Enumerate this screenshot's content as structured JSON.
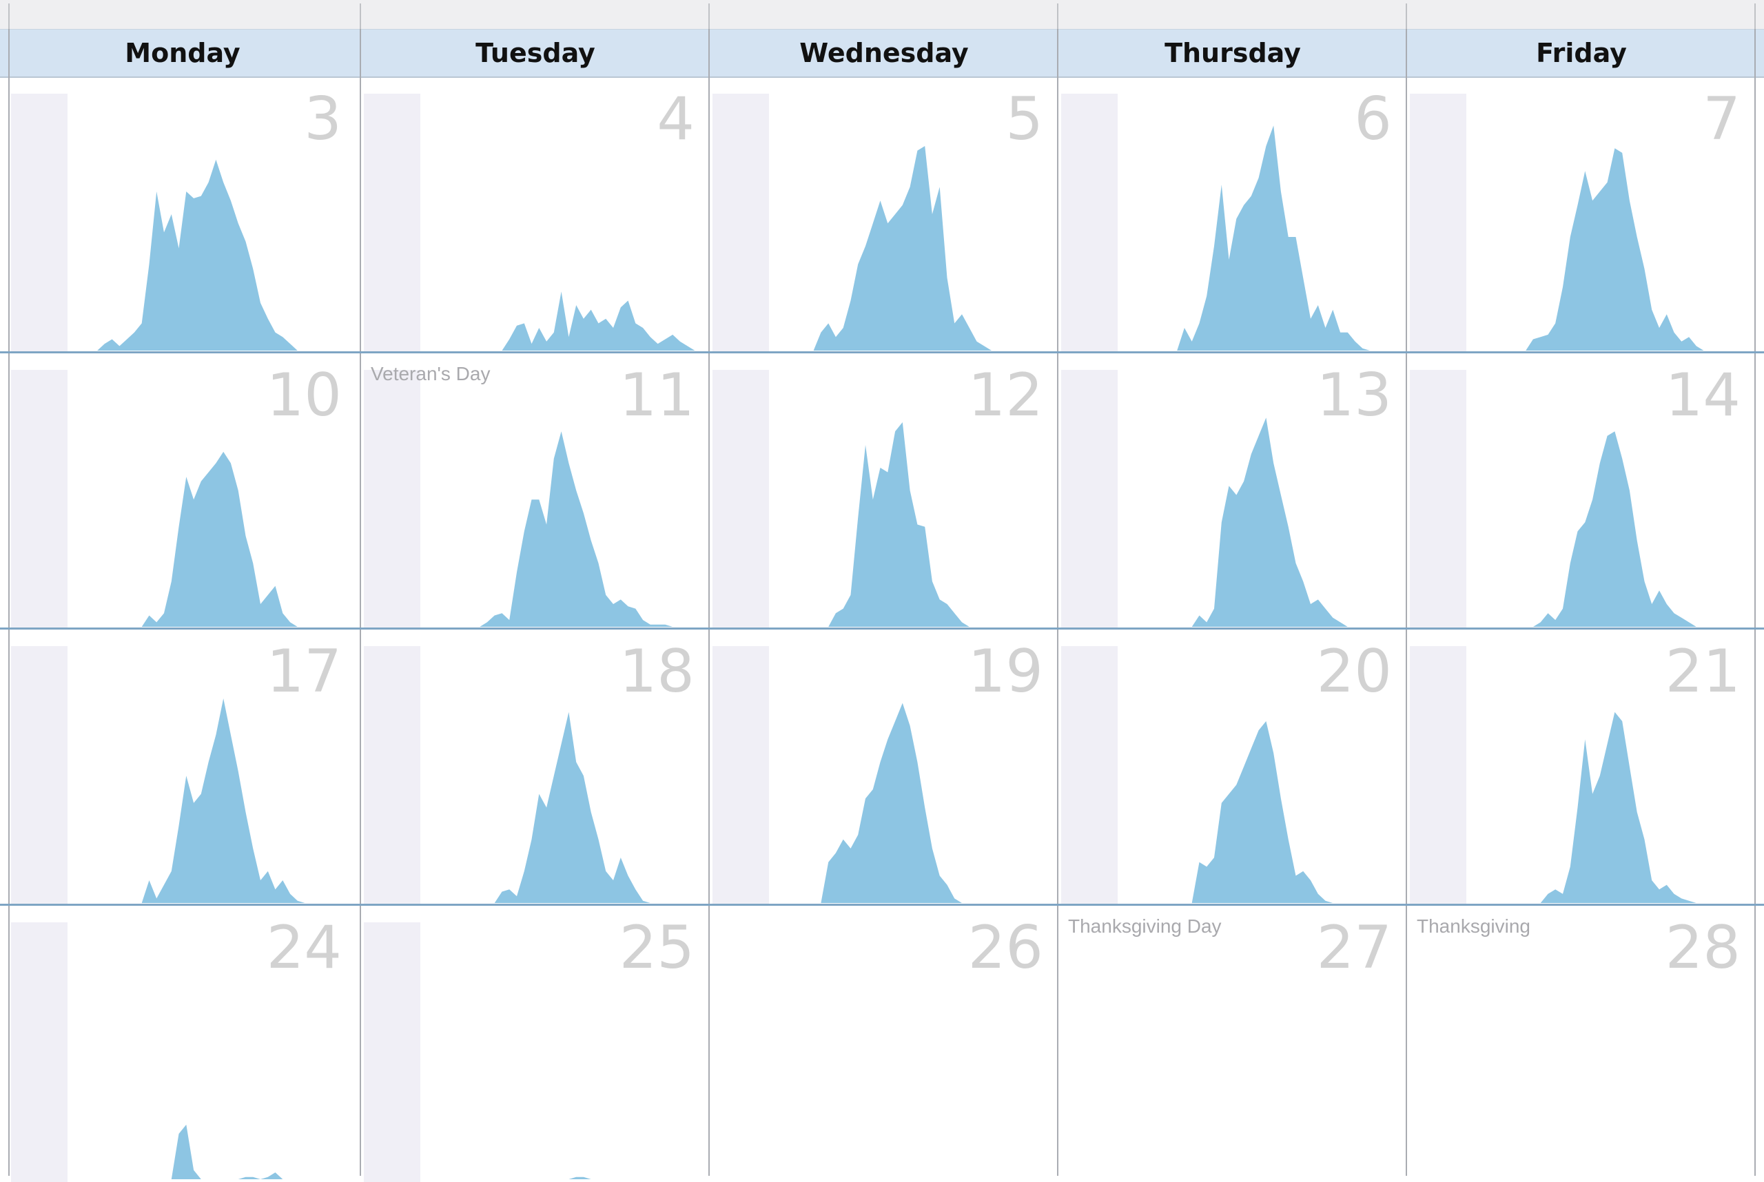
{
  "calendar": {
    "weekdays": [
      "Monday",
      "Tuesday",
      "Wednesday",
      "Thursday",
      "Friday"
    ],
    "weeks": [
      [
        {
          "day": "3",
          "holiday": "",
          "traffic": [
            0,
            0,
            0,
            0,
            0,
            3,
            5,
            2,
            5,
            8,
            12,
            38,
            70,
            52,
            60,
            45,
            70,
            67,
            68,
            74,
            84,
            74,
            66,
            56,
            48,
            36,
            21,
            14,
            8,
            6,
            3,
            0,
            0,
            0,
            0,
            0,
            0,
            0,
            0,
            0
          ]
        },
        {
          "day": "4",
          "holiday": "",
          "traffic": [
            0,
            0,
            0,
            0,
            0,
            0,
            0,
            0,
            0,
            0,
            0,
            0,
            5,
            11,
            12,
            3,
            10,
            4,
            8,
            26,
            6,
            20,
            14,
            18,
            12,
            14,
            10,
            19,
            22,
            12,
            10,
            6,
            3,
            5,
            7,
            4,
            2,
            0,
            0,
            0
          ]
        },
        {
          "day": "5",
          "holiday": "",
          "traffic": [
            0,
            0,
            0,
            0,
            0,
            0,
            0,
            8,
            12,
            6,
            10,
            22,
            38,
            46,
            56,
            66,
            56,
            60,
            64,
            72,
            88,
            90,
            60,
            72,
            32,
            12,
            16,
            10,
            4,
            2,
            0,
            0,
            0,
            0,
            0,
            0,
            0,
            0,
            0,
            0
          ]
        },
        {
          "day": "6",
          "holiday": "",
          "traffic": [
            0,
            0,
            0,
            0,
            0,
            0,
            0,
            0,
            0,
            10,
            4,
            12,
            24,
            46,
            73,
            40,
            58,
            64,
            68,
            76,
            90,
            99,
            70,
            50,
            50,
            32,
            14,
            20,
            10,
            18,
            8,
            8,
            4,
            1,
            0,
            0,
            0,
            0,
            0,
            0
          ]
        },
        {
          "day": "7",
          "holiday": "",
          "traffic": [
            0,
            0,
            0,
            0,
            0,
            0,
            0,
            0,
            0,
            5,
            6,
            7,
            12,
            28,
            50,
            64,
            79,
            66,
            70,
            74,
            89,
            87,
            66,
            50,
            36,
            18,
            10,
            16,
            8,
            4,
            6,
            2,
            0,
            0,
            0,
            0,
            0,
            0,
            0,
            0
          ]
        }
      ],
      [
        {
          "day": "10",
          "holiday": "",
          "traffic": [
            0,
            0,
            0,
            0,
            0,
            0,
            0,
            0,
            0,
            0,
            0,
            5,
            2,
            6,
            20,
            44,
            66,
            56,
            64,
            68,
            72,
            77,
            72,
            60,
            40,
            28,
            10,
            14,
            18,
            6,
            2,
            0,
            0,
            0,
            0,
            0,
            0,
            0,
            0,
            0
          ]
        },
        {
          "day": "11",
          "holiday": "Veteran's Day",
          "traffic": [
            0,
            0,
            0,
            0,
            0,
            0,
            0,
            0,
            0,
            2,
            5,
            6,
            3,
            24,
            42,
            56,
            56,
            45,
            74,
            86,
            72,
            60,
            50,
            38,
            28,
            14,
            10,
            12,
            9,
            8,
            3,
            1,
            1,
            1,
            0,
            0,
            0,
            0,
            0,
            0
          ]
        },
        {
          "day": "12",
          "holiday": "",
          "traffic": [
            0,
            0,
            0,
            0,
            0,
            0,
            0,
            0,
            0,
            6,
            8,
            14,
            48,
            80,
            56,
            70,
            68,
            86,
            90,
            60,
            45,
            44,
            20,
            12,
            10,
            6,
            2,
            0,
            0,
            0,
            0,
            0,
            0,
            0,
            0,
            0,
            0,
            0,
            0,
            0
          ]
        },
        {
          "day": "13",
          "holiday": "",
          "traffic": [
            0,
            0,
            0,
            0,
            0,
            0,
            0,
            0,
            0,
            0,
            0,
            5,
            2,
            8,
            46,
            62,
            58,
            64,
            76,
            84,
            92,
            72,
            58,
            44,
            28,
            20,
            10,
            12,
            8,
            4,
            2,
            0,
            0,
            0,
            0,
            0,
            0,
            0,
            0,
            0
          ]
        },
        {
          "day": "14",
          "holiday": "",
          "traffic": [
            0,
            0,
            0,
            0,
            0,
            0,
            0,
            0,
            0,
            0,
            2,
            6,
            3,
            8,
            28,
            42,
            46,
            56,
            72,
            84,
            86,
            74,
            60,
            38,
            20,
            10,
            16,
            10,
            6,
            4,
            2,
            0,
            0,
            0,
            0,
            0,
            0,
            0,
            0,
            0
          ]
        }
      ],
      [
        {
          "day": "17",
          "holiday": "",
          "traffic": [
            0,
            0,
            0,
            0,
            0,
            0,
            0,
            0,
            0,
            0,
            0,
            10,
            2,
            8,
            14,
            34,
            56,
            44,
            48,
            62,
            74,
            90,
            74,
            58,
            40,
            24,
            10,
            14,
            6,
            10,
            4,
            1,
            0,
            0,
            0,
            0,
            0,
            0,
            0,
            0
          ]
        },
        {
          "day": "18",
          "holiday": "",
          "traffic": [
            0,
            0,
            0,
            0,
            0,
            0,
            0,
            0,
            0,
            0,
            0,
            5,
            6,
            3,
            14,
            28,
            48,
            42,
            56,
            70,
            84,
            62,
            56,
            40,
            28,
            14,
            10,
            20,
            12,
            6,
            1,
            0,
            0,
            0,
            0,
            0,
            0,
            0,
            0,
            0
          ]
        },
        {
          "day": "19",
          "holiday": "",
          "traffic": [
            0,
            0,
            0,
            0,
            0,
            0,
            0,
            0,
            18,
            22,
            28,
            24,
            30,
            46,
            50,
            62,
            72,
            80,
            88,
            78,
            62,
            42,
            24,
            12,
            8,
            2,
            0,
            0,
            0,
            0,
            0,
            0,
            0,
            0,
            0,
            0,
            0,
            0,
            0,
            0
          ]
        },
        {
          "day": "20",
          "holiday": "",
          "traffic": [
            0,
            0,
            0,
            0,
            0,
            0,
            0,
            0,
            0,
            0,
            0,
            18,
            16,
            20,
            44,
            48,
            52,
            60,
            68,
            76,
            80,
            66,
            46,
            28,
            12,
            14,
            10,
            4,
            1,
            0,
            0,
            0,
            0,
            0,
            0,
            0,
            0,
            0,
            0,
            0
          ]
        },
        {
          "day": "21",
          "holiday": "",
          "traffic": [
            0,
            0,
            0,
            0,
            0,
            0,
            0,
            0,
            0,
            0,
            0,
            4,
            6,
            4,
            16,
            42,
            72,
            48,
            56,
            70,
            84,
            80,
            60,
            40,
            28,
            10,
            6,
            8,
            4,
            2,
            1,
            0,
            0,
            0,
            0,
            0,
            0,
            0,
            0,
            0
          ]
        }
      ],
      [
        {
          "day": "24",
          "holiday": "",
          "traffic": [
            0,
            0,
            0,
            0,
            0,
            0,
            0,
            0,
            0,
            0,
            0,
            0,
            0,
            0,
            0,
            20,
            24,
            4,
            0,
            0,
            0,
            0,
            0,
            0,
            1,
            1,
            0,
            1,
            3,
            0,
            0,
            0,
            0,
            0,
            0,
            0,
            0,
            0,
            0,
            0
          ]
        },
        {
          "day": "25",
          "holiday": "",
          "traffic": [
            0,
            0,
            0,
            0,
            0,
            0,
            0,
            0,
            0,
            0,
            0,
            0,
            0,
            0,
            0,
            0,
            0,
            0,
            0,
            0,
            0,
            1,
            1,
            0,
            0,
            0,
            0,
            0,
            0,
            0,
            0,
            0,
            0,
            0,
            0,
            0,
            0,
            0,
            0,
            0
          ]
        },
        {
          "day": "26",
          "holiday": "",
          "traffic": []
        },
        {
          "day": "27",
          "holiday": "Thanksgiving Day",
          "traffic": []
        },
        {
          "day": "28",
          "holiday": "Thanksgiving",
          "traffic": []
        }
      ]
    ],
    "colors": {
      "area": "#8dc5e3",
      "header": "#d4e3f2",
      "shade": "#f0eff6",
      "day_number": "#d2d2d2",
      "grid": "#7ea5c4"
    }
  }
}
